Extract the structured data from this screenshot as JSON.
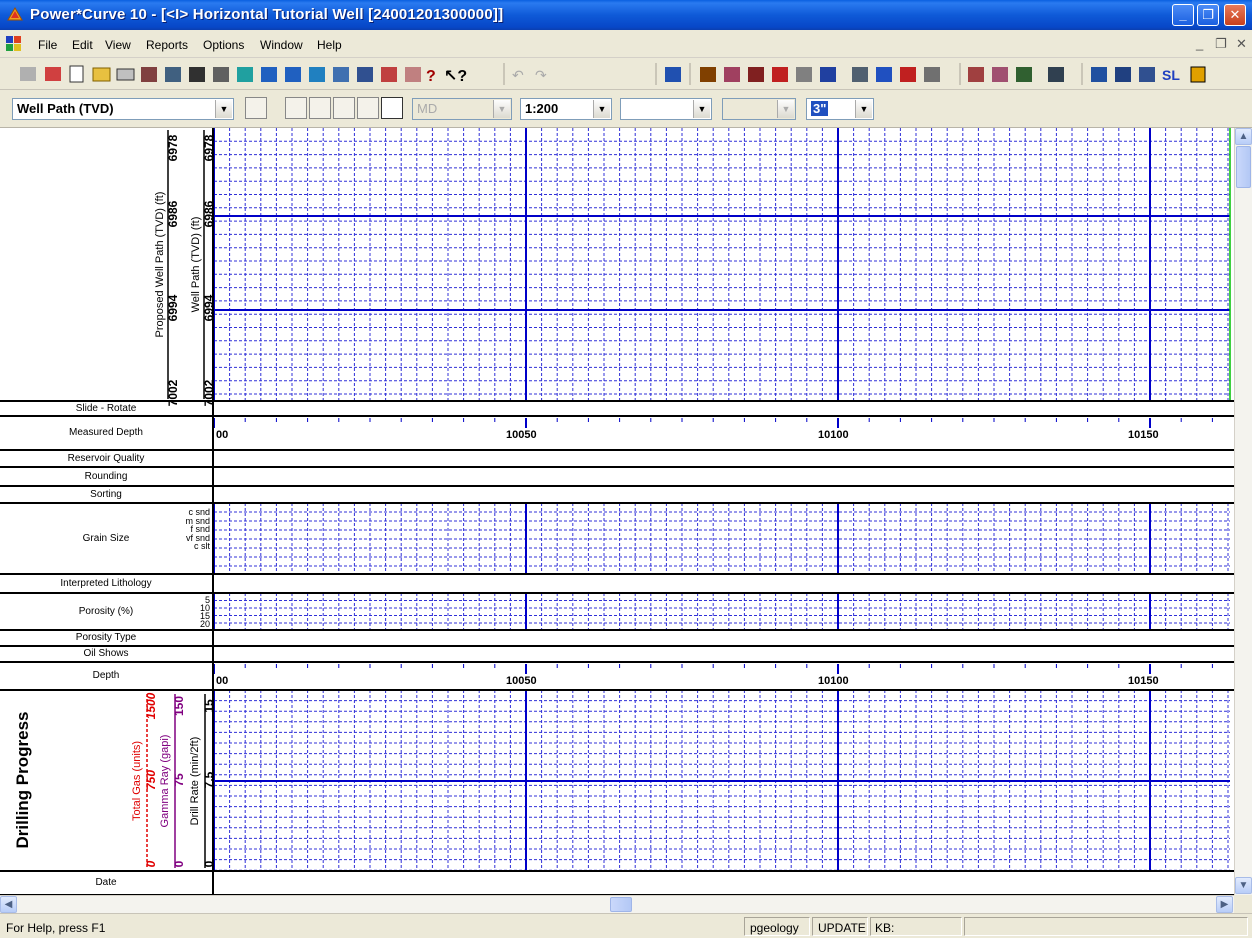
{
  "window": {
    "title": "Power*Curve 10 - [<I> Horizontal Tutorial Well [24001201300000]]",
    "min_glyph": "_",
    "max_glyph": "❐",
    "close_glyph": "✕"
  },
  "menu": {
    "items": [
      "File",
      "Edit",
      "View",
      "Reports",
      "Options",
      "Window",
      "Help"
    ],
    "mdi": {
      "min": "_",
      "restore": "❐",
      "close": "✕"
    }
  },
  "toolbar2": {
    "view_select": "Well Path (TVD)",
    "md_select": "MD",
    "scale_select": "1:200",
    "select4": "",
    "select5": "",
    "spacing_select": "3\""
  },
  "top_section": {
    "tracks": [
      {
        "label": "Proposed Well Path (TVD) (ft)",
        "ticks": [
          "6978",
          "6986",
          "6994",
          "7002"
        ],
        "color": "#000000"
      },
      {
        "label": "Well Path (TVD) (ft)",
        "ticks": [
          "6978",
          "6986",
          "6994",
          "7002"
        ],
        "color": "#000000"
      }
    ]
  },
  "rows": {
    "slide_rotate": "Slide - Rotate",
    "measured_depth": "Measured Depth",
    "reservoir_quality": "Reservoir Quality",
    "rounding": "Rounding",
    "sorting": "Sorting",
    "grain_size": "Grain Size",
    "grain_size_scale": [
      "c snd",
      "m snd",
      "f snd",
      "vf snd",
      "c slt"
    ],
    "interpreted_lithology": "Interpreted Lithology",
    "porosity": "Porosity (%)",
    "porosity_scale": [
      "5",
      "10",
      "15",
      "20"
    ],
    "porosity_type": "Porosity Type",
    "oil_shows": "Oil Shows",
    "depth": "Depth",
    "date": "Date"
  },
  "depth_labels": [
    "00",
    "10050",
    "10100",
    "10150"
  ],
  "drilling": {
    "title": "Drilling Progress",
    "tracks": [
      {
        "label": "Total Gas (units)",
        "ticks": [
          "0",
          "750",
          "1500"
        ],
        "color": "#e00000"
      },
      {
        "label": "Gamma Ray (gapi)",
        "ticks": [
          "0",
          "75",
          "150"
        ],
        "color": "#800080"
      },
      {
        "label": "Drill Rate (min/2ft)",
        "ticks": [
          "0",
          "7.5",
          "15"
        ],
        "color": "#000000"
      }
    ]
  },
  "status": {
    "help": "For Help, press F1",
    "user": "pgeology",
    "mode": "UPDATE",
    "kb": "KB:"
  },
  "colors": {
    "grid_major": "#0000c8",
    "grid_minor": "#2020d0",
    "accent_green": "#00c000"
  }
}
